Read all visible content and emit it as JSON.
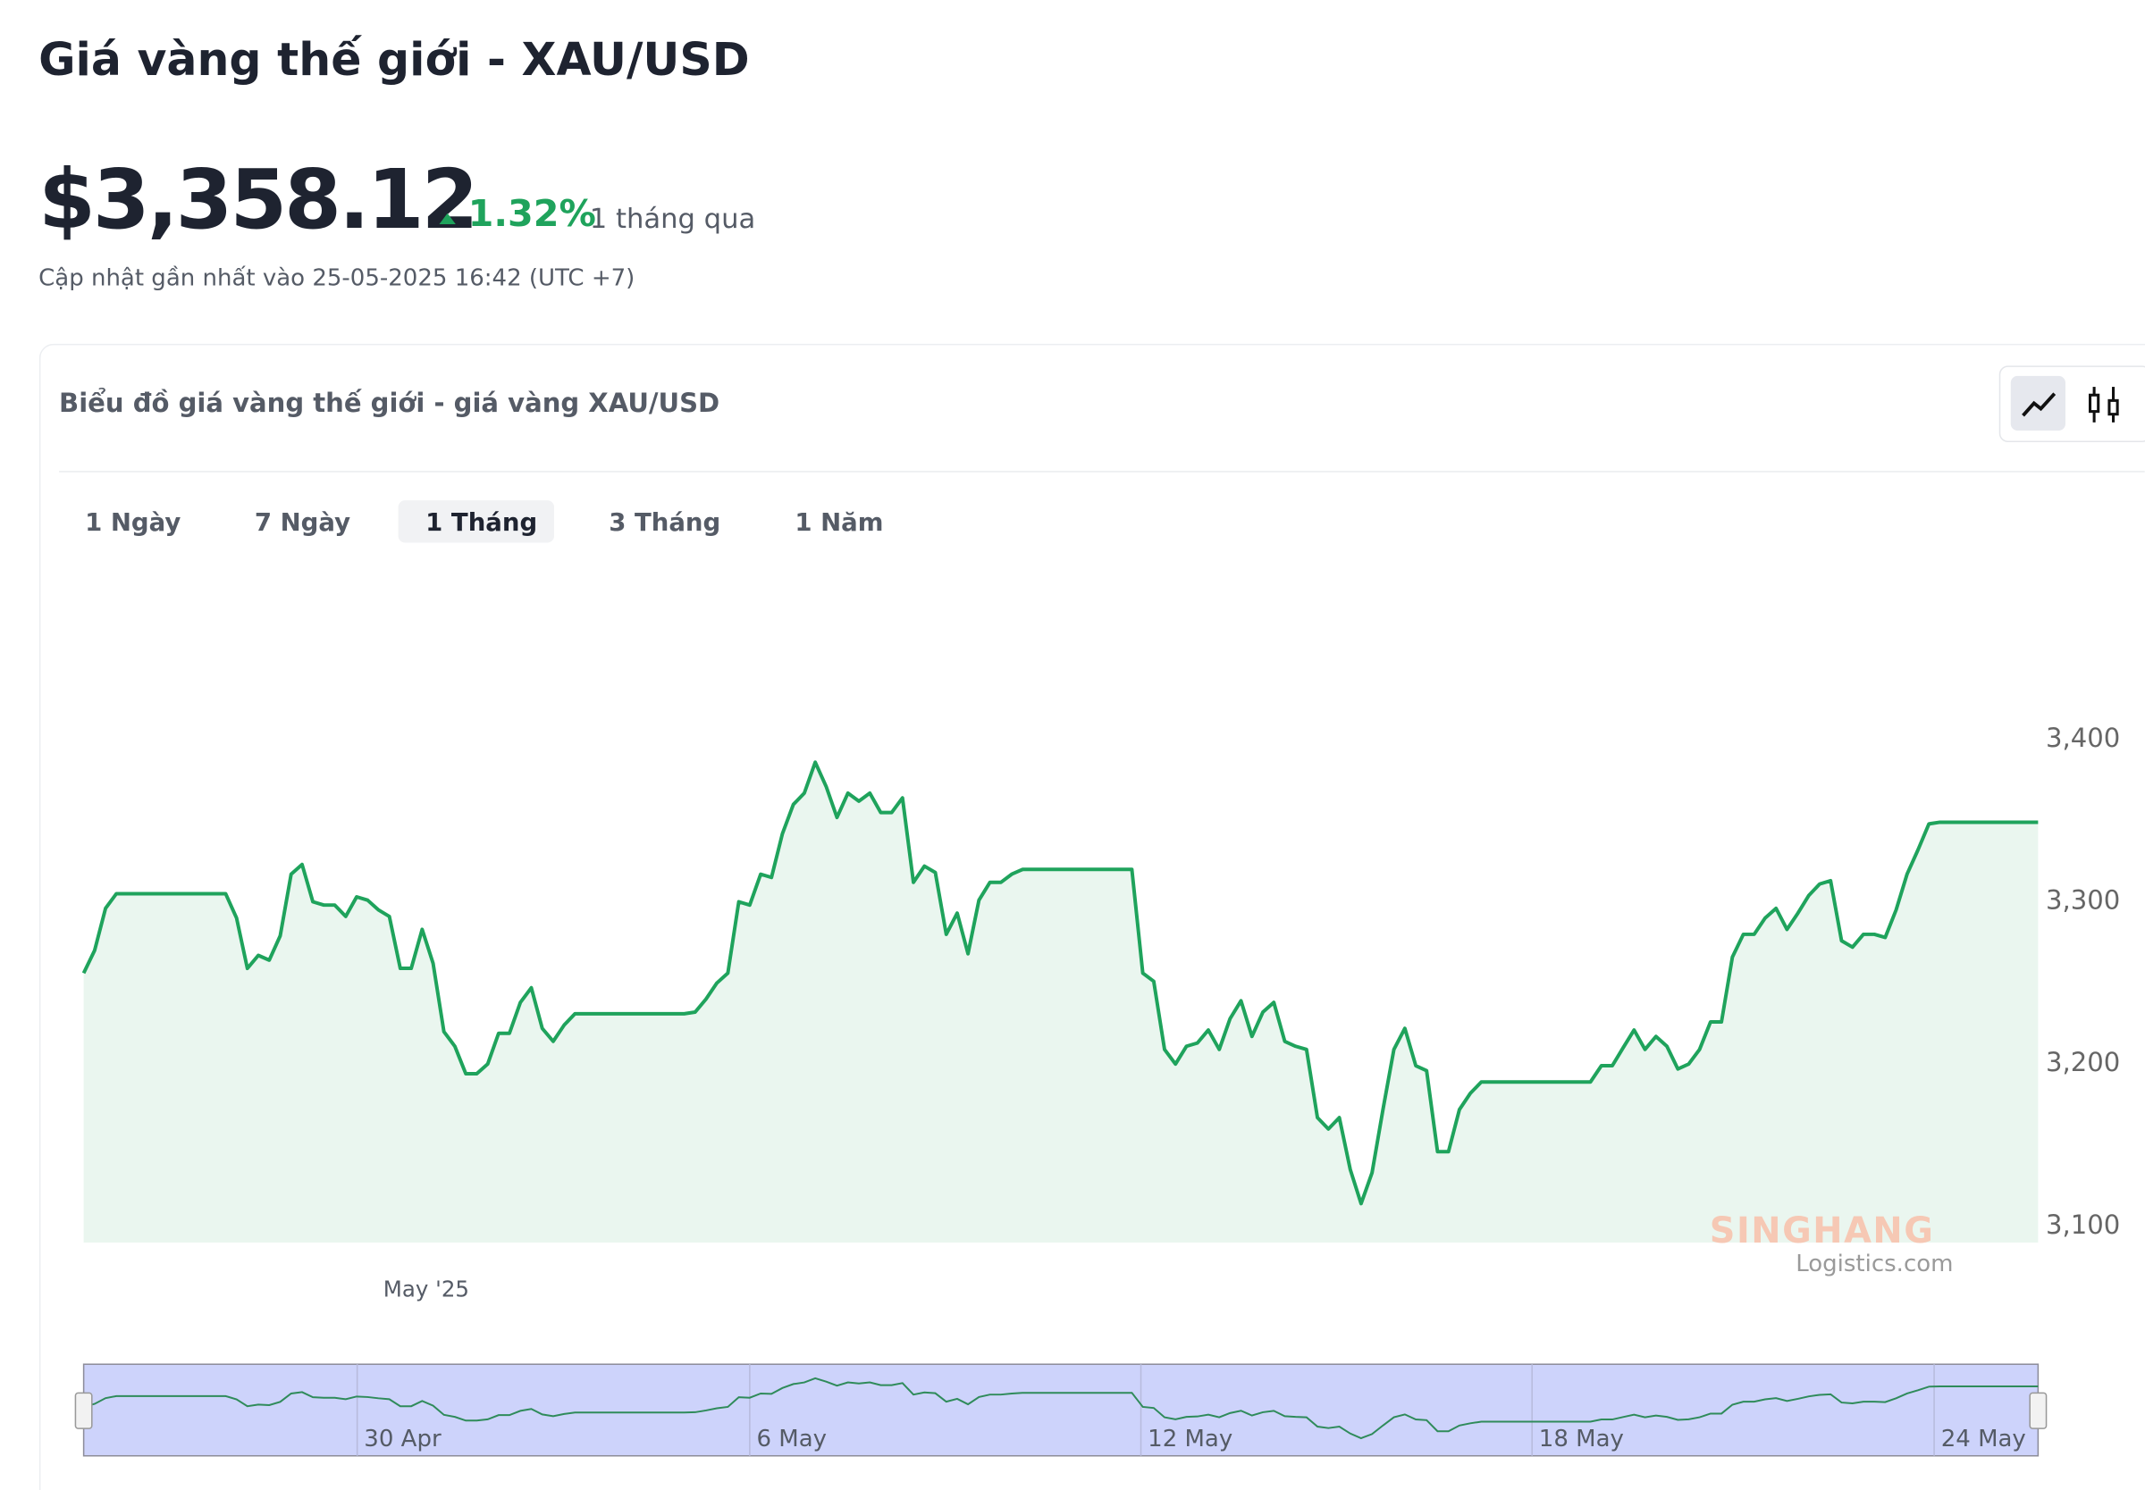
{
  "header": {
    "title": "Giá vàng thế giới - XAU/USD",
    "price": "$3,358.12",
    "change": "1.32%",
    "period": "1 tháng qua",
    "updated": "Cập nhật gần nhất vào 25-05-2025 16:42 (UTC +7)"
  },
  "card": {
    "title": "Biểu đồ giá vàng thế giới - giá vàng XAU/USD",
    "tabs": [
      "1 Ngày",
      "7 Ngày",
      "1 Tháng",
      "3 Tháng",
      "1 Năm"
    ],
    "active_tab": 2
  },
  "chart_data": {
    "type": "line",
    "x_label": "May '25",
    "navigator_labels": [
      "30 Apr",
      "6 May",
      "12 May",
      "18 May",
      "24 May"
    ],
    "series": [
      {
        "color": "#1fa35c",
        "values": [
          3256,
          3270,
          3296,
          3305,
          3305,
          3305,
          3305,
          3305,
          3305,
          3305,
          3305,
          3305,
          3305,
          3305,
          3290,
          3259,
          3267,
          3264,
          3279,
          3317,
          3323,
          3300,
          3298,
          3298,
          3291,
          3303,
          3301,
          3295,
          3291,
          3259,
          3259,
          3283,
          3262,
          3220,
          3211,
          3194,
          3194,
          3200,
          3219,
          3219,
          3238,
          3247,
          3222,
          3214,
          3224,
          3231,
          3231,
          3231,
          3231,
          3231,
          3231,
          3231,
          3231,
          3231,
          3231,
          3231,
          3232,
          3240,
          3250,
          3256,
          3300,
          3298,
          3317,
          3315,
          3342,
          3360,
          3367,
          3386,
          3371,
          3352,
          3367,
          3362,
          3367,
          3355,
          3355,
          3364,
          3312,
          3322,
          3318,
          3280,
          3293,
          3268,
          3301,
          3312,
          3312,
          3317,
          3320,
          3320,
          3320,
          3320,
          3320,
          3320,
          3320,
          3320,
          3320,
          3320,
          3320,
          3256,
          3251,
          3209,
          3200,
          3211,
          3213,
          3221,
          3209,
          3228,
          3239,
          3217,
          3232,
          3238,
          3214,
          3211,
          3209,
          3167,
          3160,
          3167,
          3135,
          3114,
          3133,
          3172,
          3209,
          3222,
          3199,
          3196,
          3146,
          3146,
          3172,
          3182,
          3189,
          3189,
          3189,
          3189,
          3189,
          3189,
          3189,
          3189,
          3189,
          3189,
          3189,
          3199,
          3199,
          3210,
          3221,
          3209,
          3217,
          3211,
          3197,
          3200,
          3209,
          3226,
          3226,
          3266,
          3280,
          3280,
          3290,
          3296,
          3283,
          3293,
          3304,
          3311,
          3313,
          3276,
          3272,
          3280,
          3280,
          3278,
          3295,
          3317,
          3332,
          3348,
          3349,
          3349,
          3349,
          3349,
          3349,
          3349,
          3349,
          3349,
          3349,
          3349
        ]
      }
    ],
    "ylim": [
      3090,
      3400
    ],
    "yticks": [
      {
        "value": 3100,
        "label": "3,100"
      },
      {
        "value": 3200,
        "label": "3,200"
      },
      {
        "value": 3300,
        "label": "3,300"
      },
      {
        "value": 3400,
        "label": "3,400"
      }
    ],
    "fill": "#eaf6ef"
  },
  "watermark": {
    "brand": "SINGHANG",
    "site": "Logistics.com"
  }
}
